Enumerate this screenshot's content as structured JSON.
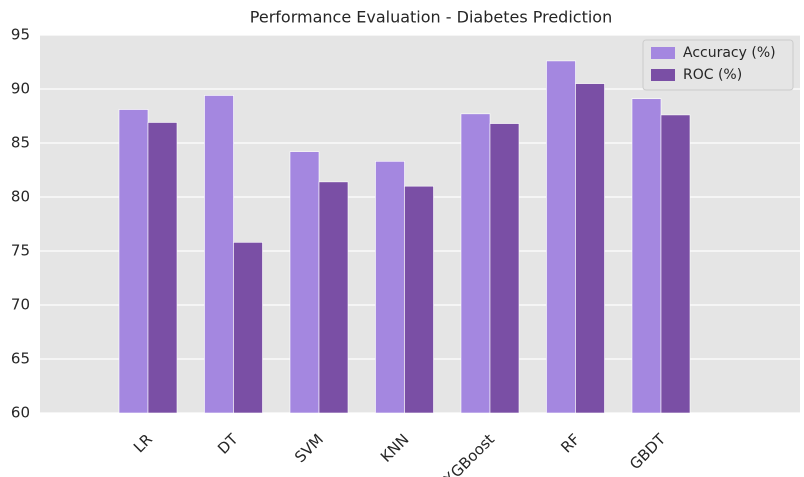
{
  "chart_data": {
    "type": "bar",
    "title": "Performance Evaluation - Diabetes Prediction",
    "categories": [
      "LR",
      "DT",
      "SVM",
      "KNN",
      "XGBoost",
      "RF",
      "GBDT"
    ],
    "series": [
      {
        "name": "Accuracy (%)",
        "color": "#a487e0",
        "values": [
          88.1,
          89.4,
          84.2,
          83.3,
          87.7,
          92.6,
          89.1
        ]
      },
      {
        "name": "ROC (%)",
        "color": "#7a4fa5",
        "values": [
          86.9,
          75.8,
          81.4,
          81.0,
          86.8,
          90.5,
          87.6
        ]
      }
    ],
    "ylim": [
      60,
      95
    ],
    "yticks": [
      60,
      65,
      70,
      75,
      80,
      85,
      90,
      95
    ],
    "grid": true,
    "legend": "upper right"
  }
}
